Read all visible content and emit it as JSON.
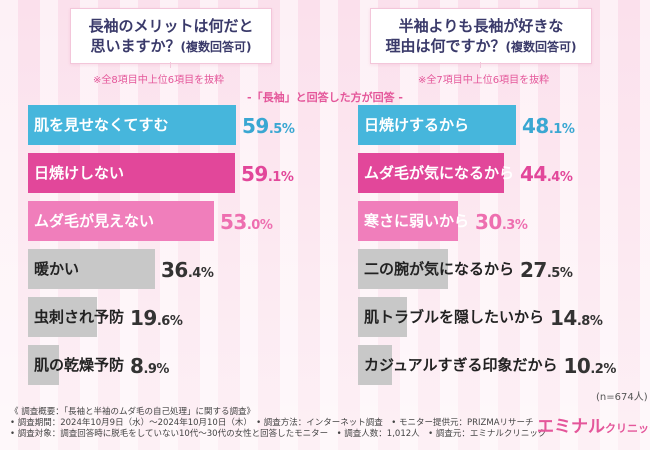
{
  "questions": {
    "left": {
      "line1": "長袖のメリットは何だと",
      "line2": "思いますか？",
      "suffix": "(複数回答可)",
      "note": "※全8項目中上位6項目を抜粋"
    },
    "right": {
      "line1": "半袖よりも長袖が好きな",
      "line2": "理由は何ですか？",
      "suffix": "(複数回答可)",
      "note": "※全7項目中上位6項目を抜粋"
    }
  },
  "center_note": "-「長袖」と回答した方が回答 -",
  "n_note": "(n=674人)",
  "footer": {
    "line1": "《 調査概要：「長袖と半袖のムダ毛の自己処理」に関する調査》",
    "line2": "• 調査期間：2024年10月9日（水）〜2024年10月10日（木）　• 調査方法：インターネット調査　• モニター提供元：PRIZMAリサーチ",
    "line3": "• 調査対象：調査回答時に脱毛をしていない10代〜30代の女性と回答したモニター　• 調査人数：1,012人　• 調査元：エミナルクリニック"
  },
  "logo": {
    "main": "エミナル",
    "small": "クリニック"
  },
  "colors": {
    "cyan": "#46b6dc",
    "magenta": "#e2479a",
    "pink": "#f07ebb",
    "gray": "#c8c8c8",
    "cyan_text": "#3aa7d2",
    "magenta_text": "#e2479a",
    "pink_text": "#ee6fb0",
    "gray_text": "#333333"
  },
  "chart_data": [
    {
      "type": "bar",
      "orientation": "horizontal",
      "unit": "%",
      "categories": [
        "肌を見せなくてすむ",
        "日焼けしない",
        "ムダ毛が見えない",
        "暖かい",
        "虫刺され予防",
        "肌の乾燥予防"
      ],
      "values": [
        59.5,
        59.1,
        53.0,
        36.4,
        19.6,
        8.9
      ],
      "value_labels": [
        {
          "int": "59",
          "dec": ".5%"
        },
        {
          "int": "59",
          "dec": ".1%"
        },
        {
          "int": "53",
          "dec": ".0%"
        },
        {
          "int": "36",
          "dec": ".4%"
        },
        {
          "int": "19",
          "dec": ".6%"
        },
        {
          "int": "8",
          "dec": ".9%"
        }
      ],
      "bar_colors": [
        "cyan",
        "magenta",
        "pink",
        "gray",
        "gray",
        "gray"
      ],
      "xlim": [
        0,
        60
      ]
    },
    {
      "type": "bar",
      "orientation": "horizontal",
      "unit": "%",
      "categories": [
        "日焼けするから",
        "ムダ毛が気になるから",
        "寒さに弱いから",
        "二の腕が気になるから",
        "肌トラブルを隠したいから",
        "カジュアルすぎる印象だから"
      ],
      "values": [
        48.1,
        44.4,
        30.3,
        27.5,
        14.8,
        10.2
      ],
      "value_labels": [
        {
          "int": "48",
          "dec": ".1%"
        },
        {
          "int": "44",
          "dec": ".4%"
        },
        {
          "int": "30",
          "dec": ".3%"
        },
        {
          "int": "27",
          "dec": ".5%"
        },
        {
          "int": "14",
          "dec": ".8%"
        },
        {
          "int": "10",
          "dec": ".2%"
        }
      ],
      "bar_colors": [
        "cyan",
        "magenta",
        "pink",
        "gray",
        "gray",
        "gray"
      ],
      "xlim": [
        0,
        48.1
      ]
    }
  ]
}
